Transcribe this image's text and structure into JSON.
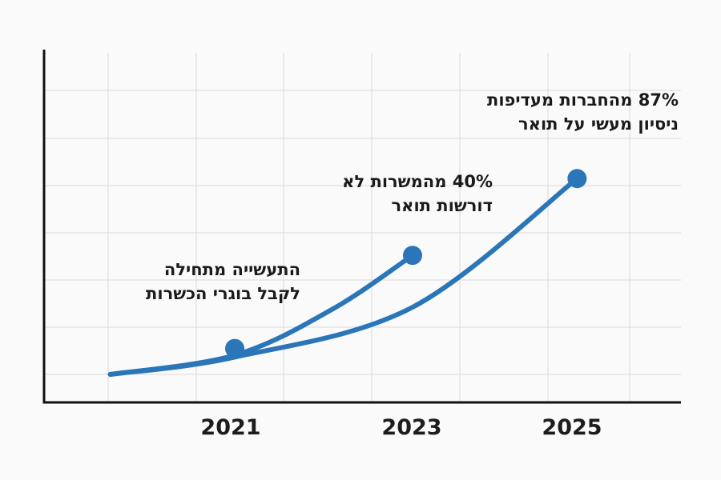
{
  "chart_data": {
    "type": "line",
    "x_ticks": [
      "2021",
      "2023",
      "2025"
    ],
    "grid": true,
    "colors": {
      "series": "#2a76b9",
      "axis": "#111111",
      "grid": "#dadada"
    },
    "series": [
      {
        "x": [
          2019.6,
          2021.0,
          2022.1,
          2023.0
        ],
        "y": [
          1,
          2,
          4.4,
          7.2
        ]
      },
      {
        "x": [
          2019.6,
          2021.0,
          2023.0,
          2024.85
        ],
        "y": [
          1,
          1.9,
          4.5,
          11.2
        ]
      }
    ],
    "points": [
      {
        "x": 2021.0,
        "y": 2.35,
        "label_lines": [
          "התעשייה מתחילה",
          "לקבל בוגרי הכשרות"
        ]
      },
      {
        "x": 2023.0,
        "y": 7.2,
        "label_lines": [
          "40% מהמשרות לא",
          "דורשות תואר"
        ]
      },
      {
        "x": 2024.85,
        "y": 11.2,
        "label_lines": [
          "87% מהחברות מעדיפות",
          "ניסיון מעשי על תואר"
        ]
      }
    ]
  }
}
